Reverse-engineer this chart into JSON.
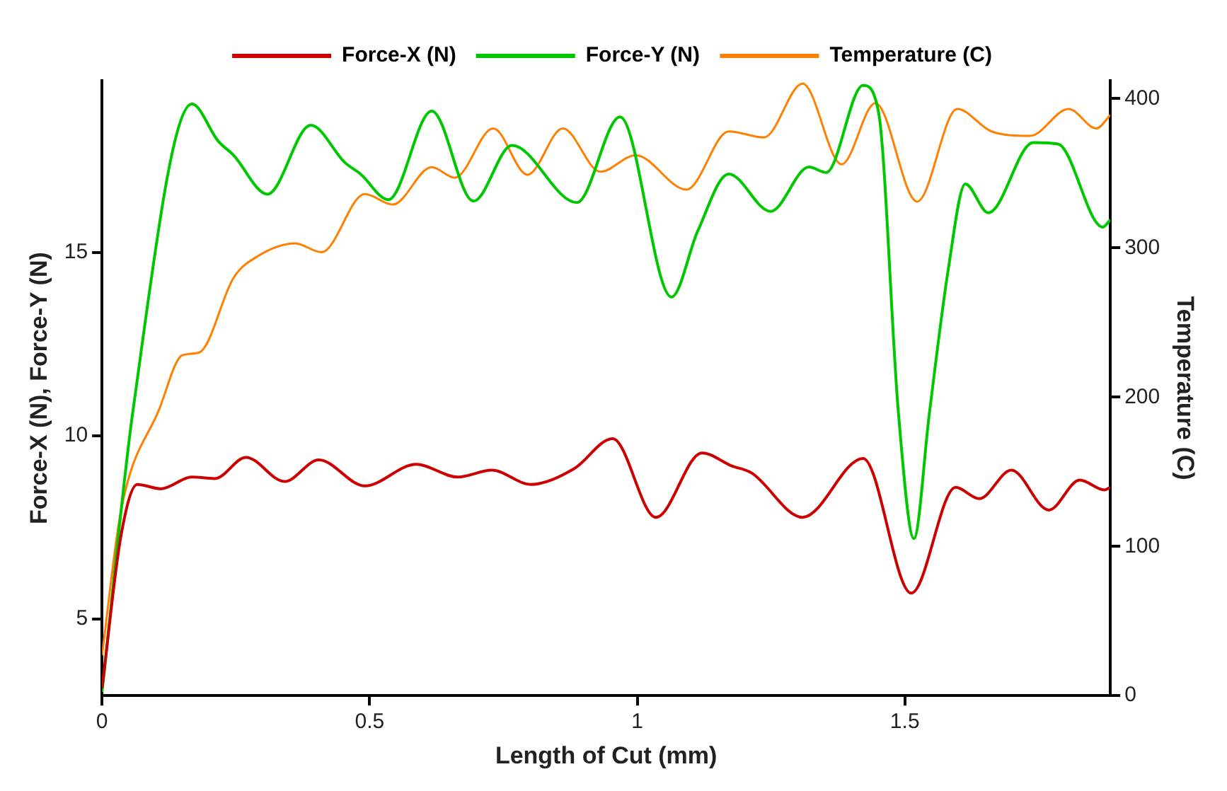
{
  "chart_data": {
    "type": "line",
    "xlabel": "Length of Cut (mm)",
    "ylabel": "Force-X (N), Force-Y (N)",
    "y2label": "Temperature (C)",
    "xlim": [
      0,
      1.884
    ],
    "xticks": [
      0,
      0.5,
      1,
      1.5
    ],
    "ylim": [
      2.9,
      19.7
    ],
    "yticks": [
      5,
      10,
      15
    ],
    "y2lim": [
      0,
      412
    ],
    "y2ticks": [
      0,
      100,
      200,
      300,
      400
    ],
    "grid": false,
    "legend": "top",
    "marker": "none",
    "line_style": "solid",
    "series": [
      {
        "name": "Force-X (N)",
        "color": "#cc0000",
        "x": [
          0,
          0.035,
          0.066,
          0.11,
          0.168,
          0.211,
          0.269,
          0.341,
          0.405,
          0.491,
          0.587,
          0.665,
          0.728,
          0.801,
          0.882,
          0.954,
          1.035,
          1.121,
          1.176,
          1.214,
          1.309,
          1.422,
          1.512,
          1.595,
          1.639,
          1.699,
          1.769,
          1.827,
          1.873,
          1.884
        ],
        "values": [
          3.09,
          7.23,
          8.67,
          8.55,
          8.87,
          8.83,
          9.41,
          8.75,
          9.34,
          8.63,
          9.22,
          8.87,
          9.06,
          8.67,
          9.1,
          9.92,
          7.77,
          9.53,
          9.18,
          8.98,
          7.77,
          9.38,
          5.7,
          8.59,
          8.28,
          9.06,
          7.97,
          8.79,
          8.52,
          8.59
        ]
      },
      {
        "name": "Force-Y (N)",
        "color": "#00c800",
        "x": [
          0,
          0.058,
          0.168,
          0.217,
          0.246,
          0.309,
          0.39,
          0.454,
          0.483,
          0.535,
          0.616,
          0.694,
          0.766,
          0.887,
          0.968,
          1.064,
          1.113,
          1.171,
          1.249,
          1.321,
          1.353,
          1.422,
          1.451,
          1.488,
          1.517,
          1.546,
          1.581,
          1.613,
          1.656,
          1.74,
          1.786,
          1.87,
          1.884
        ],
        "values": [
          3.0,
          10.7,
          19.06,
          18.05,
          17.66,
          16.6,
          18.48,
          17.46,
          17.15,
          16.45,
          18.87,
          16.41,
          17.93,
          16.37,
          18.71,
          13.79,
          15.59,
          17.15,
          16.13,
          17.34,
          17.19,
          19.57,
          18.83,
          10.63,
          7.19,
          10.63,
          14.53,
          16.88,
          16.09,
          18.01,
          17.97,
          15.7,
          15.9
        ]
      },
      {
        "name": "Temperature (C)",
        "color": "#ff8000",
        "axis": "y2",
        "x": [
          0,
          0.035,
          0.107,
          0.15,
          0.182,
          0.246,
          0.289,
          0.361,
          0.41,
          0.491,
          0.543,
          0.616,
          0.659,
          0.731,
          0.795,
          0.861,
          0.931,
          0.997,
          1.092,
          1.171,
          1.237,
          1.309,
          1.382,
          1.445,
          1.523,
          1.598,
          1.662,
          1.734,
          1.806,
          1.858,
          1.884
        ],
        "values": [
          27,
          123,
          192,
          228,
          230,
          280,
          294,
          303,
          297,
          336,
          329,
          354,
          347,
          380,
          349,
          380,
          351,
          362,
          339,
          378,
          374,
          410,
          356,
          397,
          331,
          393,
          378,
          375,
          393,
          380,
          389
        ]
      }
    ]
  }
}
